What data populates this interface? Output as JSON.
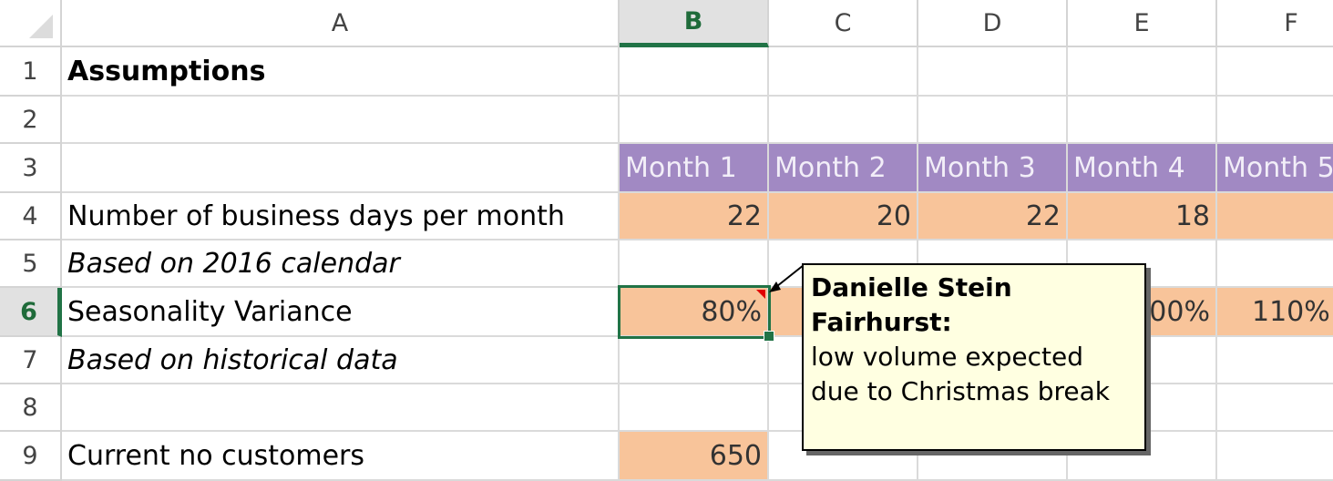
{
  "columns": [
    "A",
    "B",
    "C",
    "D",
    "E",
    "F"
  ],
  "rows": [
    "1",
    "2",
    "3",
    "4",
    "5",
    "6",
    "7",
    "8",
    "9"
  ],
  "cells": {
    "A1": "Assumptions",
    "B3": "Month 1",
    "C3": "Month 2",
    "D3": "Month 3",
    "E3": "Month 4",
    "F3": "Month 5",
    "A4": "Number of business days per month",
    "B4": "22",
    "C4": "20",
    "D4": "22",
    "E4": "18",
    "F4": "",
    "A5": "Based on 2016 calendar",
    "A6": "Seasonality Variance",
    "B6": "80%",
    "E6": "100%",
    "F6": "110%",
    "A7": "Based on historical data",
    "A9": "Current no customers",
    "B9": "650"
  },
  "comment": {
    "author": "Danielle Stein Fairhurst:",
    "text": "low volume expected due to Christmas break"
  },
  "selected_cell": "B6",
  "colors": {
    "header_fill": "#a189c3",
    "input_fill": "#f8c49a",
    "selection": "#217346",
    "comment_bg": "#ffffe1"
  }
}
